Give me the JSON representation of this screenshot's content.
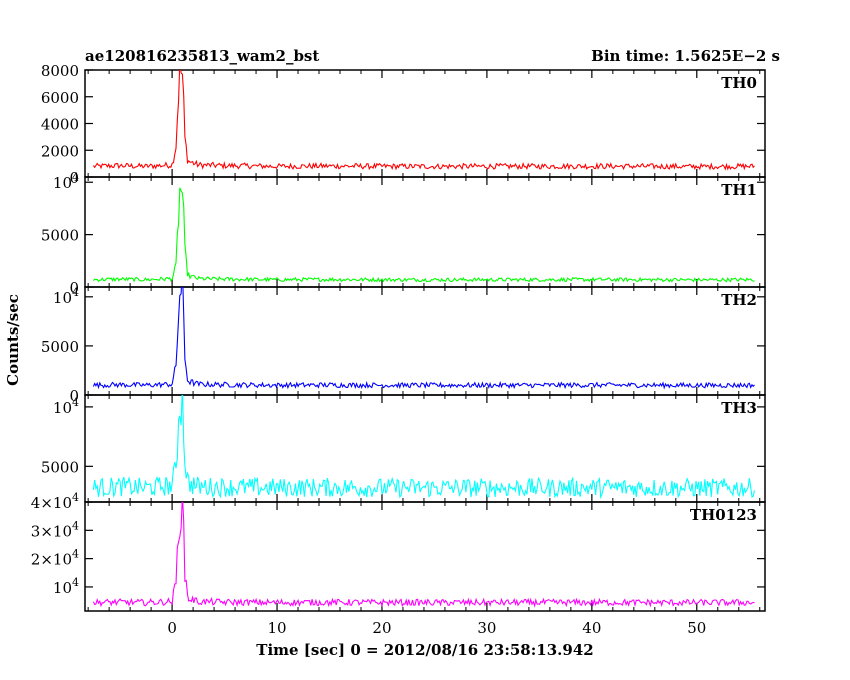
{
  "header": {
    "title": "ae120816235813_wam2_bst",
    "bin_time": "Bin time: 1.5625E−2 s"
  },
  "ylabel": "Counts/sec",
  "xlabel": "Time [sec] 0 = 2012/08/16 23:58:13.942",
  "colors": {
    "TH0": "#ff0000",
    "TH1": "#00ff00",
    "TH2": "#0000ff",
    "TH3": "#00ffff",
    "TH0123": "#ff00ff"
  },
  "chart_data": {
    "type": "line",
    "xlim": [
      -8.3,
      56.5
    ],
    "x_ticks": [
      0,
      10,
      20,
      30,
      40,
      50
    ],
    "x_tick_labels": [
      "0",
      "10",
      "20",
      "30",
      "40",
      "50"
    ],
    "series": [
      {
        "name": "TH0",
        "ylim": [
          0,
          8000
        ],
        "y_ticks": [
          0,
          2000,
          4000,
          6000,
          8000
        ],
        "y_tick_labels": [
          {
            "base": "0"
          },
          {
            "base": "2000"
          },
          {
            "base": "4000"
          },
          {
            "base": "6000"
          },
          {
            "base": "8000"
          }
        ],
        "x": [
          -7.5,
          -5,
          -2.5,
          0,
          0.4,
          0.6,
          0.8,
          1.0,
          1.2,
          1.5,
          2.5,
          5,
          10,
          15,
          20,
          25,
          30,
          35,
          40,
          45,
          50,
          55.5
        ],
        "values": [
          800,
          850,
          800,
          900,
          2500,
          6500,
          8000,
          7500,
          3000,
          1200,
          900,
          850,
          800,
          820,
          800,
          790,
          800,
          800,
          810,
          800,
          780,
          800
        ]
      },
      {
        "name": "TH1",
        "ylim": [
          0,
          10500
        ],
        "y_ticks": [
          0,
          5000,
          10000
        ],
        "y_tick_labels": [
          {
            "base": "0"
          },
          {
            "base": "5000"
          },
          {
            "base": "10",
            "exp": "4"
          }
        ],
        "x": [
          -7.5,
          -5,
          -2.5,
          0,
          0.4,
          0.6,
          0.8,
          1.0,
          1.2,
          1.5,
          2.5,
          5,
          10,
          15,
          20,
          25,
          30,
          35,
          40,
          45,
          50,
          55.5
        ],
        "values": [
          700,
          750,
          700,
          800,
          2000,
          7000,
          9500,
          9000,
          3500,
          1100,
          800,
          750,
          700,
          720,
          700,
          690,
          700,
          700,
          710,
          700,
          680,
          700
        ]
      },
      {
        "name": "TH2",
        "ylim": [
          0,
          11000
        ],
        "y_ticks": [
          0,
          5000,
          10000
        ],
        "y_tick_labels": [
          {
            "base": "0"
          },
          {
            "base": "5000"
          },
          {
            "base": "10",
            "exp": "4"
          }
        ],
        "x": [
          -7.5,
          -5,
          -2.5,
          0,
          0.4,
          0.6,
          0.8,
          1.0,
          1.2,
          1.5,
          2.5,
          5,
          10,
          15,
          20,
          25,
          30,
          35,
          40,
          45,
          50,
          55.5
        ],
        "values": [
          1000,
          1050,
          1000,
          1100,
          3000,
          8500,
          11000,
          10500,
          4000,
          1400,
          1100,
          1050,
          1000,
          1020,
          1000,
          990,
          1000,
          1000,
          1010,
          1000,
          980,
          1000
        ]
      },
      {
        "name": "TH3",
        "ylim": [
          2000,
          11000
        ],
        "y_ticks": [
          5000,
          10000
        ],
        "y_tick_labels": [
          {
            "base": "5000"
          },
          {
            "base": "10",
            "exp": "4"
          }
        ],
        "x": [
          -7.5,
          -5,
          -2.5,
          0,
          0.4,
          0.6,
          0.8,
          1.0,
          1.2,
          1.5,
          2.5,
          5,
          10,
          15,
          20,
          25,
          30,
          35,
          40,
          45,
          50,
          55.5
        ],
        "values": [
          3200,
          3300,
          3200,
          3400,
          5000,
          9000,
          11000,
          10500,
          6000,
          3600,
          3300,
          3250,
          3200,
          3220,
          3200,
          3190,
          3200,
          3200,
          3210,
          3200,
          3180,
          3200
        ]
      },
      {
        "name": "TH0123",
        "ylim": [
          1500,
          40000
        ],
        "y_ticks": [
          10000,
          20000,
          30000,
          40000
        ],
        "y_tick_labels": [
          {
            "base": "10",
            "exp": "4"
          },
          {
            "base": "2×10",
            "exp": "4"
          },
          {
            "base": "3×10",
            "exp": "4"
          },
          {
            "base": "4×10",
            "exp": "4"
          }
        ],
        "x": [
          -7.5,
          -5,
          -2.5,
          0,
          0.4,
          0.6,
          0.8,
          1.0,
          1.2,
          1.5,
          2.5,
          5,
          10,
          15,
          20,
          25,
          30,
          35,
          40,
          45,
          50,
          55.5
        ],
        "values": [
          4500,
          4600,
          4500,
          4800,
          12000,
          30000,
          40000,
          38000,
          16000,
          6000,
          4800,
          4600,
          4500,
          4550,
          4500,
          4480,
          4500,
          4500,
          4520,
          4500,
          4450,
          4500
        ]
      }
    ]
  }
}
